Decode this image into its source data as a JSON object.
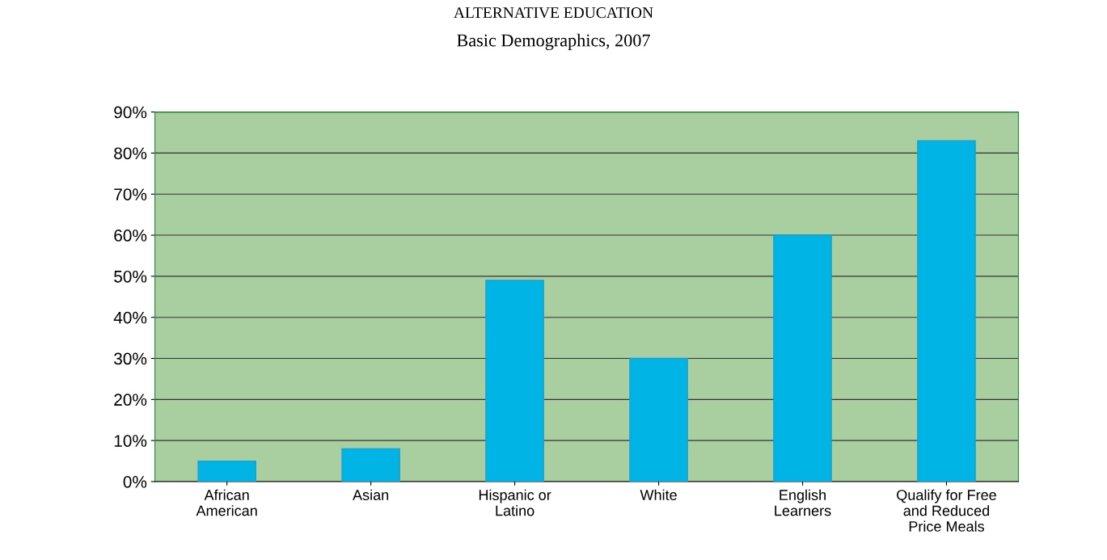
{
  "chart_data": {
    "type": "bar",
    "title": "ALTERNATIVE EDUCATION",
    "subtitle": "Basic Demographics, 2007",
    "categories": [
      "African\nAmerican",
      "Asian",
      "Hispanic or\nLatino",
      "White",
      "English\nLearners",
      "Qualify for Free\nand Reduced\nPrice Meals"
    ],
    "values": [
      5,
      8,
      49,
      30,
      60,
      83
    ],
    "color": "#00b4e6",
    "ylim": [
      0,
      90
    ],
    "yticks": [
      {
        "value": 0,
        "label": "0%"
      },
      {
        "value": 10,
        "label": "10%"
      },
      {
        "value": 20,
        "label": "20%"
      },
      {
        "value": 30,
        "label": "30%"
      },
      {
        "value": 40,
        "label": "40%"
      },
      {
        "value": 50,
        "label": "50%"
      },
      {
        "value": 60,
        "label": "60%"
      },
      {
        "value": 70,
        "label": "70%"
      },
      {
        "value": 80,
        "label": "80%"
      },
      {
        "value": 90,
        "label": "90%"
      }
    ],
    "grid": "y"
  }
}
